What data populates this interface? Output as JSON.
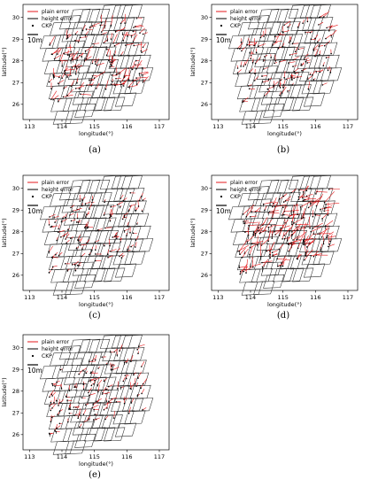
{
  "colors": {
    "plain_error": "#e41a1c",
    "height_error": "#000000",
    "ckp": "#000000",
    "footprint": "#2b2b2b"
  },
  "chart_data": [
    {
      "id": "a",
      "type": "scatter",
      "caption": "(a)",
      "xlabel": "longitude(°)",
      "ylabel": "latitude(°)",
      "xlim": [
        112.8,
        117.3
      ],
      "ylim": [
        25.3,
        30.6
      ],
      "xticks": [
        113,
        114,
        115,
        116,
        117
      ],
      "yticks": [
        26,
        27,
        28,
        29,
        30
      ],
      "legend": {
        "placement": "top-left",
        "entries": [
          "plain error",
          "height error",
          "CKP"
        ]
      },
      "scale_bar_label": "10m",
      "grid": false,
      "error_density": 150,
      "error_scale": 1.0
    },
    {
      "id": "b",
      "type": "scatter",
      "caption": "(b)",
      "xlabel": "longitude(°)",
      "ylabel": "latitude(°)",
      "xlim": [
        112.8,
        117.3
      ],
      "ylim": [
        25.3,
        30.6
      ],
      "xticks": [
        113,
        114,
        115,
        116,
        117
      ],
      "yticks": [
        26,
        27,
        28,
        29,
        30
      ],
      "legend": {
        "placement": "top-left",
        "entries": [
          "plain error",
          "height error",
          "CKP"
        ]
      },
      "scale_bar_label": "10m",
      "grid": false,
      "error_density": 130,
      "error_scale": 0.75
    },
    {
      "id": "c",
      "type": "scatter",
      "caption": "(c)",
      "xlabel": "longitude(°)",
      "ylabel": "latitude(°)",
      "xlim": [
        112.8,
        117.3
      ],
      "ylim": [
        25.3,
        30.6
      ],
      "xticks": [
        113,
        114,
        115,
        116,
        117
      ],
      "yticks": [
        26,
        27,
        28,
        29,
        30
      ],
      "legend": {
        "placement": "top-left",
        "entries": [
          "plain error",
          "height error",
          "CKP"
        ]
      },
      "scale_bar_label": "10m",
      "grid": false,
      "error_density": 120,
      "error_scale": 0.65
    },
    {
      "id": "d",
      "type": "scatter",
      "caption": "(d)",
      "xlabel": "longitude(°)",
      "ylabel": "latitude(°)",
      "xlim": [
        112.8,
        117.3
      ],
      "ylim": [
        25.3,
        30.6
      ],
      "xticks": [
        113,
        114,
        115,
        116,
        117
      ],
      "yticks": [
        26,
        27,
        28,
        29,
        30
      ],
      "legend": {
        "placement": "top-left",
        "entries": [
          "plain error",
          "height error",
          "CKP"
        ]
      },
      "scale_bar_label": "10m",
      "grid": false,
      "error_density": 170,
      "error_scale": 1.4
    },
    {
      "id": "e",
      "type": "scatter",
      "caption": "(e)",
      "xlabel": "longitude(°)",
      "ylabel": "latitude(°)",
      "xlim": [
        112.8,
        117.3
      ],
      "ylim": [
        25.3,
        30.6
      ],
      "xticks": [
        113,
        114,
        115,
        116,
        117
      ],
      "yticks": [
        26,
        27,
        28,
        29,
        30
      ],
      "legend": {
        "placement": "top-left",
        "entries": [
          "plain error",
          "height error",
          "CKP"
        ]
      },
      "scale_bar_label": "10m",
      "grid": false,
      "error_density": 130,
      "error_scale": 0.7
    }
  ]
}
